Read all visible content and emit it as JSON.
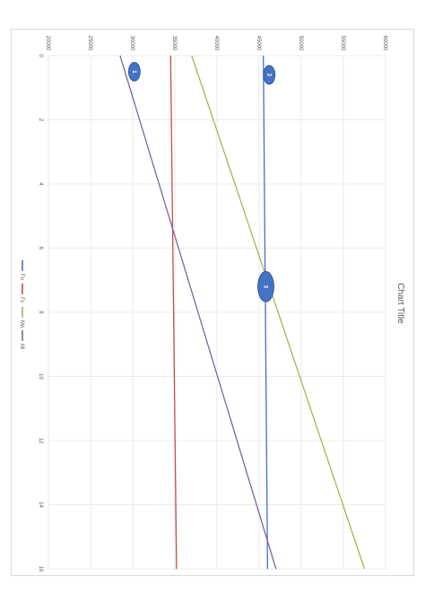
{
  "chart_data": {
    "type": "line",
    "orientation": "rotated-90-clockwise",
    "title": "Chart Title",
    "x": [
      0,
      16
    ],
    "xlim": [
      0,
      16
    ],
    "xticks": [
      "0",
      "2",
      "4",
      "6",
      "8",
      "10",
      "12",
      "14",
      "16"
    ],
    "ylim": [
      20000,
      60000
    ],
    "yticks": [
      "20000",
      "25000",
      "30000",
      "35000",
      "40000",
      "45000",
      "50000",
      "55000",
      "60000"
    ],
    "grid": true,
    "legend_position": "right",
    "series": [
      {
        "name": "Fo",
        "color": "#4472c4",
        "values": [
          45500,
          46000
        ]
      },
      {
        "name": "Fc",
        "color": "#c0504d",
        "values": [
          34500,
          35200
        ]
      },
      {
        "name": "Mo",
        "color": "#9bbb59",
        "values": [
          37000,
          57500
        ]
      },
      {
        "name": "Mi",
        "color": "#8064a2",
        "values": [
          28500,
          47000
        ]
      }
    ],
    "markers": [
      {
        "label": "1",
        "x": 0.5,
        "y": 30200,
        "size": "small"
      },
      {
        "label": "2",
        "x": 0.6,
        "y": 46200,
        "size": "small"
      },
      {
        "label": "3",
        "x": 7.2,
        "y": 45800,
        "size": "large"
      }
    ]
  }
}
